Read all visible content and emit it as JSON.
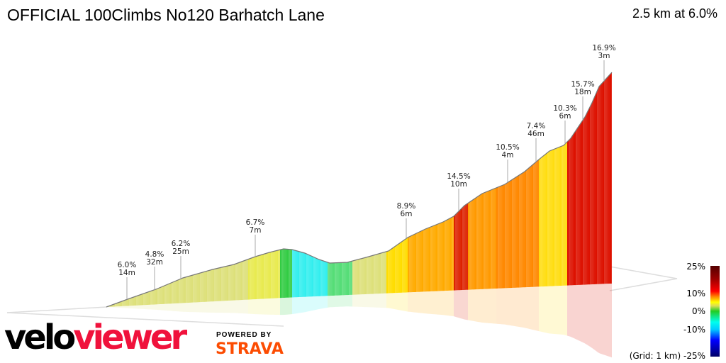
{
  "header": {
    "title": "OFFICIAL 100Climbs No120 Barhatch Lane",
    "summary": "2.5 km at 6.0%"
  },
  "chart_data": {
    "type": "area",
    "title": "OFFICIAL 100Climbs No120 Barhatch Lane",
    "subtitle": "2.5 km at 6.0%",
    "annotations": [
      {
        "grade": "6.0%",
        "length": "14m"
      },
      {
        "grade": "4.8%",
        "length": "32m"
      },
      {
        "grade": "6.2%",
        "length": "25m"
      },
      {
        "grade": "6.7%",
        "length": "7m"
      },
      {
        "grade": "8.9%",
        "length": "6m"
      },
      {
        "grade": "14.5%",
        "length": "10m"
      },
      {
        "grade": "10.5%",
        "length": "4m"
      },
      {
        "grade": "7.4%",
        "length": "46m"
      },
      {
        "grade": "10.3%",
        "length": "6m"
      },
      {
        "grade": "15.7%",
        "length": "18m"
      },
      {
        "grade": "16.9%",
        "length": "3m"
      }
    ],
    "legend": {
      "ticks": [
        "25%",
        "10%",
        "0%",
        "-10%",
        "(Grid: 1 km) -25%"
      ],
      "range": [
        -25,
        25
      ],
      "placement": "bottom-right",
      "colors": [
        "#000066",
        "#0000ff",
        "#00ccff",
        "#00ffee",
        "#22cc22",
        "#dddd55",
        "#ffff00",
        "#ff8800",
        "#ff0000",
        "#990000",
        "#550000"
      ]
    }
  },
  "branding": {
    "logo_a": "velo",
    "logo_b": "viewer",
    "powered": "POWERED BY",
    "strava": "STRAVA"
  }
}
